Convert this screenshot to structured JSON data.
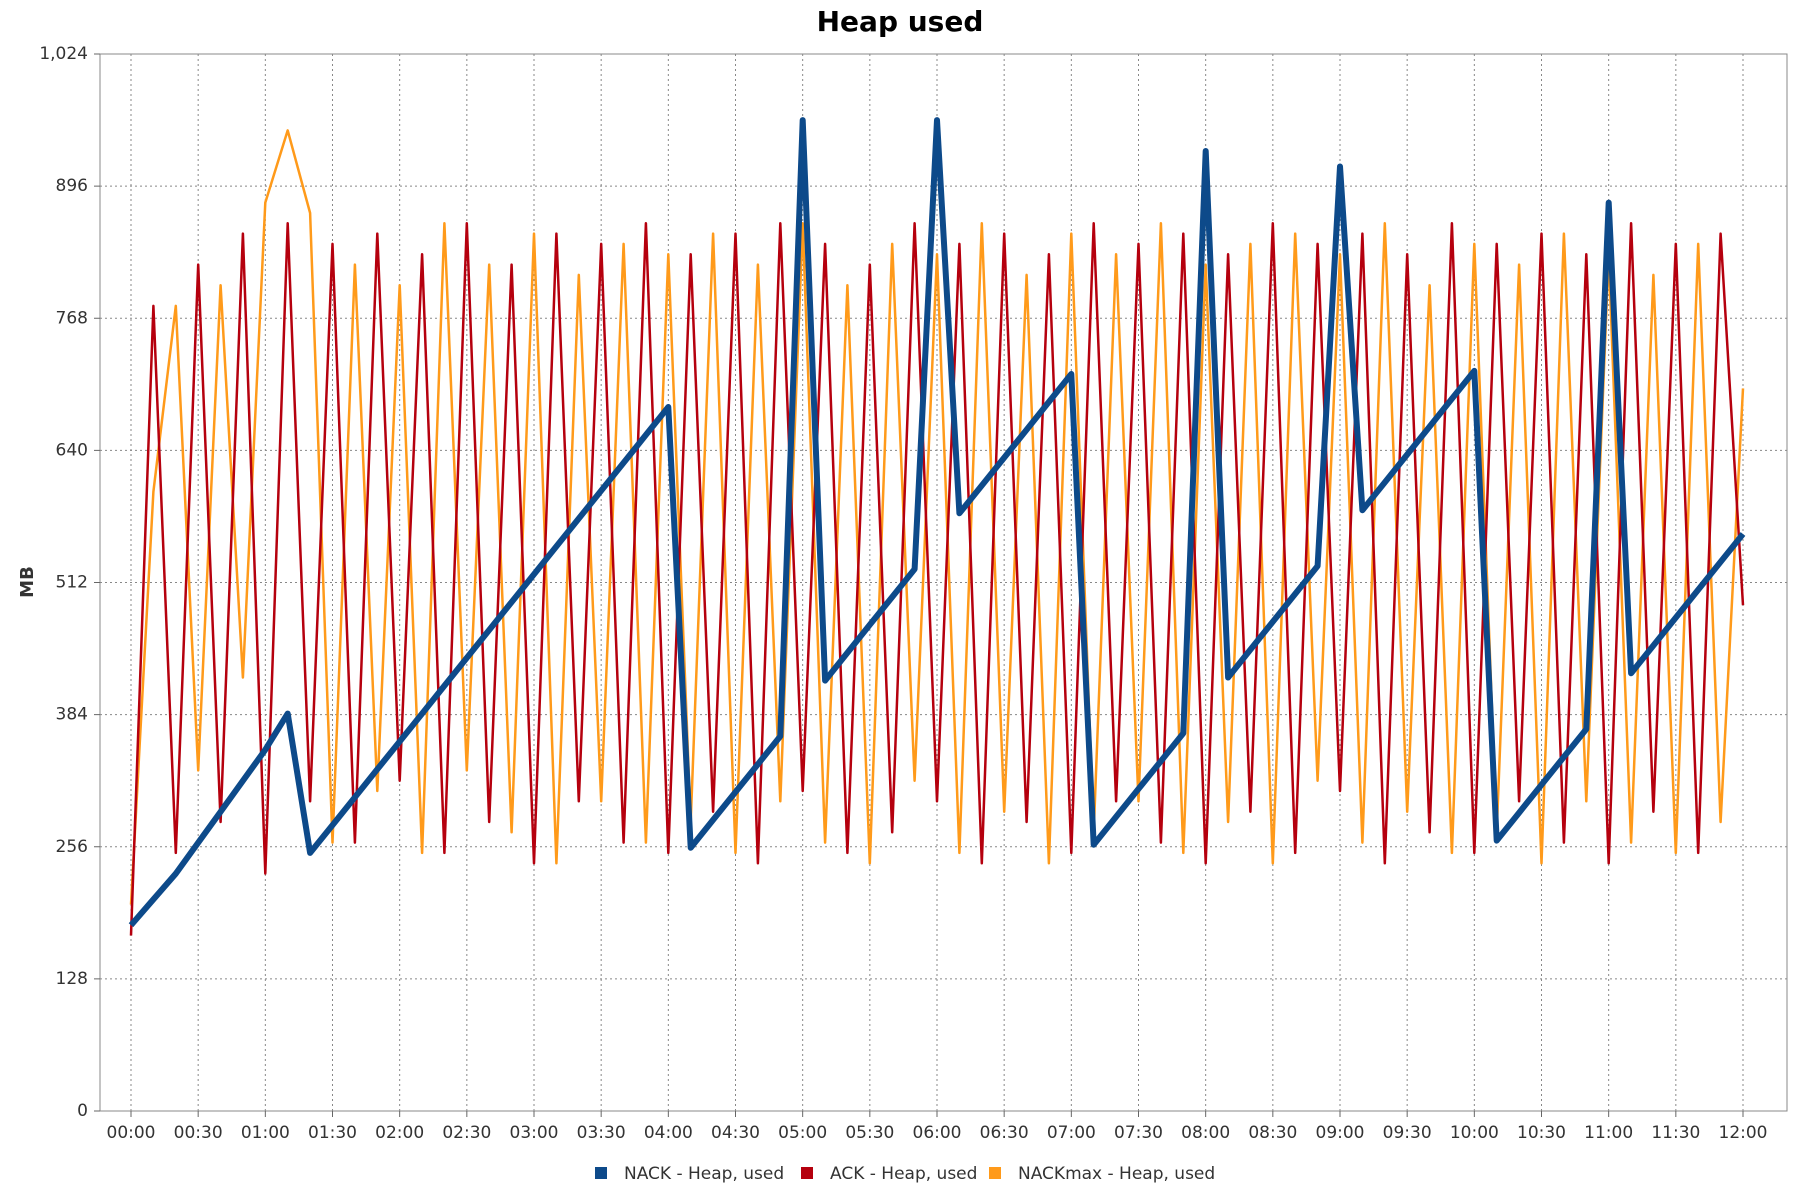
{
  "chart_data": {
    "type": "line",
    "title": "Heap used",
    "y_label": "MB",
    "x": [
      "00:00",
      "00:10",
      "00:20",
      "00:30",
      "00:40",
      "00:50",
      "01:00",
      "01:10",
      "01:20",
      "01:30",
      "01:40",
      "01:50",
      "02:00",
      "02:10",
      "02:20",
      "02:30",
      "02:40",
      "02:50",
      "03:00",
      "03:10",
      "03:20",
      "03:30",
      "03:40",
      "03:50",
      "04:00",
      "04:10",
      "04:20",
      "04:30",
      "04:40",
      "04:50",
      "05:00",
      "05:10",
      "05:20",
      "05:30",
      "05:40",
      "05:50",
      "06:00",
      "06:10",
      "06:20",
      "06:30",
      "06:40",
      "06:50",
      "07:00",
      "07:10",
      "07:20",
      "07:30",
      "07:40",
      "07:50",
      "08:00",
      "08:10",
      "08:20",
      "08:30",
      "08:40",
      "08:50",
      "09:00",
      "09:10",
      "09:20",
      "09:30",
      "09:40",
      "09:50",
      "10:00",
      "10:10",
      "10:20",
      "10:30",
      "10:40",
      "10:50",
      "11:00",
      "11:10",
      "11:20",
      "11:30",
      "11:40",
      "11:50",
      "12:00"
    ],
    "xticks": [
      "00:00",
      "00:30",
      "01:00",
      "01:30",
      "02:00",
      "02:30",
      "03:00",
      "03:30",
      "04:00",
      "04:30",
      "05:00",
      "05:30",
      "06:00",
      "06:30",
      "07:00",
      "07:30",
      "08:00",
      "08:30",
      "09:00",
      "09:30",
      "10:00",
      "10:30",
      "11:00",
      "11:30",
      "12:00"
    ],
    "ylim": [
      0,
      1024
    ],
    "yticks": [
      0,
      128,
      256,
      384,
      512,
      640,
      768,
      896,
      {
        "value": 1024,
        "label": "1,024"
      }
    ],
    "grid": true,
    "legend": "bottom",
    "series": [
      {
        "name": "NACK - Heap, used",
        "color": "#0d4a8a",
        "values": [
          180,
          205,
          230,
          260,
          290,
          320,
          350,
          385,
          250,
          277,
          304,
          331,
          358,
          385,
          412,
          439,
          466,
          493,
          520,
          547,
          574,
          601,
          628,
          655,
          682,
          255,
          282,
          309,
          336,
          363,
          960,
          417,
          444,
          471,
          498,
          525,
          960,
          579,
          606,
          633,
          660,
          687,
          714,
          258,
          285,
          312,
          339,
          366,
          930,
          420,
          447,
          474,
          501,
          528,
          915,
          582,
          609,
          636,
          663,
          690,
          717,
          262,
          289,
          316,
          343,
          370,
          880,
          424,
          451,
          478,
          505,
          532,
          559
        ]
      },
      {
        "name": "ACK - Heap, used",
        "color": "#b5000e",
        "values": [
          170,
          780,
          250,
          820,
          280,
          850,
          230,
          860,
          300,
          840,
          260,
          850,
          320,
          830,
          250,
          860,
          280,
          820,
          240,
          850,
          300,
          840,
          260,
          860,
          250,
          830,
          290,
          850,
          240,
          860,
          310,
          840,
          250,
          820,
          270,
          860,
          300,
          840,
          240,
          850,
          280,
          830,
          250,
          860,
          300,
          840,
          260,
          850,
          240,
          830,
          290,
          860,
          250,
          840,
          310,
          850,
          240,
          830,
          270,
          860,
          250,
          840,
          300,
          850,
          260,
          830,
          240,
          860,
          290,
          840,
          250,
          850,
          490
        ]
      },
      {
        "name": "NACKmax - Heap, used",
        "color": "#ff9a1a",
        "values": [
          200,
          600,
          780,
          330,
          800,
          420,
          880,
          950,
          870,
          260,
          820,
          310,
          800,
          250,
          860,
          330,
          820,
          270,
          850,
          240,
          810,
          300,
          840,
          260,
          830,
          280,
          850,
          250,
          820,
          300,
          860,
          260,
          800,
          240,
          840,
          320,
          830,
          250,
          860,
          290,
          810,
          240,
          850,
          270,
          830,
          300,
          860,
          250,
          820,
          280,
          840,
          240,
          850,
          320,
          830,
          260,
          860,
          290,
          800,
          250,
          840,
          270,
          820,
          240,
          850,
          300,
          830,
          260,
          810,
          250,
          840,
          280,
          700
        ]
      }
    ]
  }
}
